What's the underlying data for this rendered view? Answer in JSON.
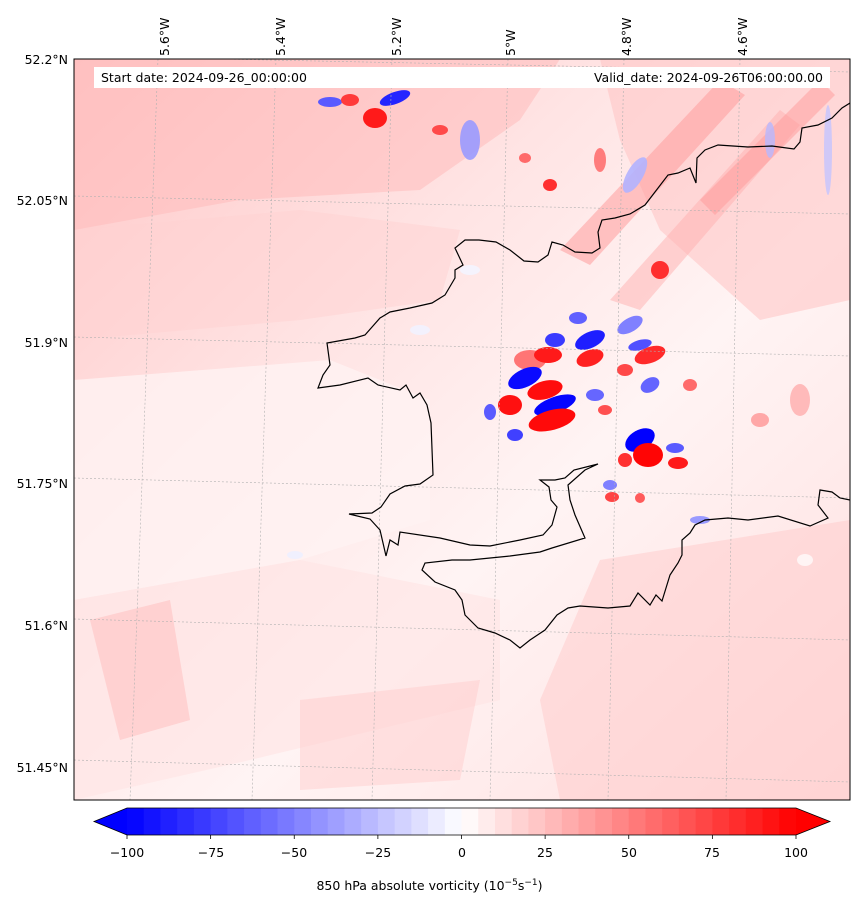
{
  "map": {
    "start_date": "Start date: 2024-09-26_00:00:00",
    "valid_date": "Valid_date: 2024-09-26T06:00:00.00",
    "longitude_labels": [
      "5.6°W",
      "5.4°W",
      "5.2°W",
      "5°W",
      "4.8°W",
      "4.6°W"
    ],
    "latitude_labels": [
      "52.2°N",
      "52.05°N",
      "51.9°N",
      "51.75°N",
      "51.6°N",
      "51.45°N"
    ],
    "field": "850 hPa absolute vorticity"
  },
  "colorbar": {
    "title_main": "850 hPa absolute vorticity (10",
    "title_exp1": "−5",
    "title_mid": "s",
    "title_exp2": "−1",
    "title_end": ")",
    "tick_labels": [
      "−100",
      "−75",
      "−50",
      "−25",
      "0",
      "25",
      "50",
      "75",
      "100"
    ],
    "min": -100,
    "max": 100,
    "levels": 40,
    "colormap": "bwr",
    "color_low": "#0000ff",
    "color_mid": "#ffffff",
    "color_high": "#ff0000"
  },
  "colors": {
    "coastline": "#000000",
    "gridline": "#b0b0b0",
    "background_field": "#ffd5d5"
  }
}
